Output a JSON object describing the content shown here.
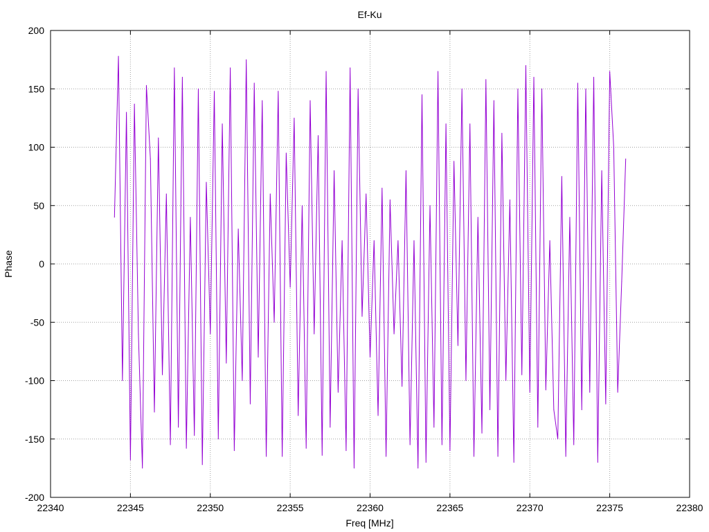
{
  "chart_data": {
    "type": "line",
    "title": "Ef-Ku",
    "xlabel": "Freq [MHz]",
    "ylabel": "Phase",
    "xlim": [
      22340,
      22380
    ],
    "ylim": [
      -200,
      200
    ],
    "xticks": [
      22340,
      22345,
      22350,
      22355,
      22360,
      22365,
      22370,
      22375,
      22380
    ],
    "yticks": [
      -200,
      -150,
      -100,
      -50,
      0,
      50,
      100,
      150,
      200
    ],
    "grid": true,
    "legend": "none",
    "line_color": "#9400d3",
    "x": [
      22344,
      22344.25,
      22344.5,
      22344.75,
      22345,
      22345.25,
      22345.5,
      22345.75,
      22346,
      22346.25,
      22346.5,
      22346.75,
      22347,
      22347.25,
      22347.5,
      22347.75,
      22348,
      22348.25,
      22348.5,
      22348.75,
      22349,
      22349.25,
      22349.5,
      22349.75,
      22350,
      22350.25,
      22350.5,
      22350.75,
      22351,
      22351.25,
      22351.5,
      22351.75,
      22352,
      22352.25,
      22352.5,
      22352.75,
      22353,
      22353.25,
      22353.5,
      22353.75,
      22354,
      22354.25,
      22354.5,
      22354.75,
      22355,
      22355.25,
      22355.5,
      22355.75,
      22356,
      22356.25,
      22356.5,
      22356.75,
      22357,
      22357.25,
      22357.5,
      22357.75,
      22358,
      22358.25,
      22358.5,
      22358.75,
      22359,
      22359.25,
      22359.5,
      22359.75,
      22360,
      22360.25,
      22360.5,
      22360.75,
      22361,
      22361.25,
      22361.5,
      22361.75,
      22362,
      22362.25,
      22362.5,
      22362.75,
      22363,
      22363.25,
      22363.5,
      22363.75,
      22364,
      22364.25,
      22364.5,
      22364.75,
      22365,
      22365.25,
      22365.5,
      22365.75,
      22366,
      22366.25,
      22366.5,
      22366.75,
      22367,
      22367.25,
      22367.5,
      22367.75,
      22368,
      22368.25,
      22368.5,
      22368.75,
      22369,
      22369.25,
      22369.5,
      22369.75,
      22370,
      22370.25,
      22370.5,
      22370.75,
      22371,
      22371.25,
      22371.5,
      22371.75,
      22372,
      22372.25,
      22372.5,
      22372.75,
      22373,
      22373.25,
      22373.5,
      22373.75,
      22374,
      22374.25,
      22374.5,
      22374.75,
      22375,
      22375.25,
      22375.5,
      22375.75,
      22376
    ],
    "y": [
      40,
      178,
      -100,
      130,
      -168,
      137,
      -60,
      -175,
      153,
      90,
      -127,
      108,
      -95,
      60,
      -155,
      168,
      -140,
      160,
      -158,
      40,
      -147,
      150,
      -172,
      70,
      -60,
      148,
      -150,
      120,
      -85,
      168,
      -160,
      30,
      -100,
      175,
      -120,
      155,
      -80,
      140,
      -165,
      60,
      -50,
      148,
      -165,
      95,
      -20,
      125,
      -130,
      50,
      -158,
      140,
      -60,
      110,
      -164,
      165,
      -140,
      80,
      -110,
      20,
      -160,
      168,
      -175,
      150,
      -45,
      60,
      -80,
      20,
      -130,
      65,
      -165,
      55,
      -60,
      20,
      -105,
      80,
      -155,
      20,
      -175,
      145,
      -170,
      50,
      -140,
      165,
      -155,
      120,
      -160,
      88,
      -70,
      150,
      -100,
      120,
      -165,
      40,
      -145,
      158,
      -125,
      140,
      -165,
      112,
      -100,
      55,
      -170,
      150,
      -95,
      170,
      -110,
      160,
      -140,
      150,
      -108,
      20,
      -125,
      -150,
      75,
      -165,
      40,
      -155,
      155,
      -125,
      150,
      -110,
      160,
      -170,
      80,
      -120,
      165,
      100,
      -110,
      -15,
      90
    ]
  }
}
